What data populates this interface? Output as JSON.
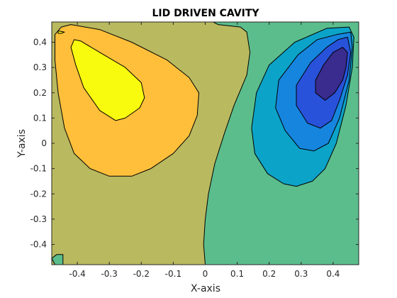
{
  "chart_data": {
    "type": "contour",
    "title": "LID DRIVEN CAVITY",
    "xlabel": "X-axis",
    "ylabel": "Y-axis",
    "xlim": [
      -0.48,
      0.48
    ],
    "ylim": [
      -0.48,
      0.48
    ],
    "xticks": [
      -0.4,
      -0.3,
      -0.2,
      -0.1,
      0,
      0.1,
      0.2,
      0.3,
      0.4
    ],
    "xtick_labels": [
      "-0.4",
      "-0.3",
      "-0.2",
      "-0.1",
      "0",
      "0.1",
      "0.2",
      "0.3",
      "0.4"
    ],
    "yticks": [
      -0.4,
      -0.3,
      -0.2,
      -0.1,
      0,
      0.1,
      0.2,
      0.3,
      0.4
    ],
    "ytick_labels": [
      "-0.4",
      "-0.3",
      "-0.2",
      "-0.1",
      "0",
      "0.1",
      "0.2",
      "0.3",
      "0.4"
    ],
    "grid": false,
    "box": true,
    "colormap": "parula",
    "level_colors": {
      "background_high": "#b9b95f",
      "orange": "#ffbf3a",
      "yellow": "#f9fb0e",
      "background_low": "#5bbd8c",
      "cyan": "#0ca3c8",
      "medium_blue": "#1685de",
      "blue": "#2852da",
      "dark_blue": "#3a2b8e"
    },
    "regions": [
      {
        "level": "background_low",
        "points": [
          [
            0.025,
            0.48
          ],
          [
            0.04,
            0.47
          ],
          [
            0.11,
            0.46
          ],
          [
            0.13,
            0.44
          ],
          [
            0.14,
            0.36
          ],
          [
            0.13,
            0.27
          ],
          [
            0.09,
            0.15
          ],
          [
            0.06,
            0.04
          ],
          [
            0.03,
            -0.08
          ],
          [
            0.01,
            -0.2
          ],
          [
            0.0,
            -0.3
          ],
          [
            -0.005,
            -0.4
          ],
          [
            0.0,
            -0.48
          ],
          [
            0.48,
            -0.48
          ],
          [
            0.48,
            0.48
          ]
        ]
      },
      {
        "level": "cyan",
        "points": [
          [
            0.38,
            0.455
          ],
          [
            0.45,
            0.46
          ],
          [
            0.465,
            0.42
          ],
          [
            0.46,
            0.3
          ],
          [
            0.44,
            0.15
          ],
          [
            0.41,
            0.0
          ],
          [
            0.375,
            -0.1
          ],
          [
            0.335,
            -0.15
          ],
          [
            0.285,
            -0.17
          ],
          [
            0.245,
            -0.16
          ],
          [
            0.195,
            -0.12
          ],
          [
            0.155,
            -0.04
          ],
          [
            0.145,
            0.06
          ],
          [
            0.16,
            0.2
          ],
          [
            0.2,
            0.31
          ],
          [
            0.28,
            0.4
          ]
        ]
      },
      {
        "level": "medium_blue",
        "points": [
          [
            0.41,
            0.43
          ],
          [
            0.455,
            0.44
          ],
          [
            0.46,
            0.38
          ],
          [
            0.45,
            0.25
          ],
          [
            0.42,
            0.1
          ],
          [
            0.385,
            0.0
          ],
          [
            0.34,
            -0.03
          ],
          [
            0.295,
            -0.02
          ],
          [
            0.25,
            0.05
          ],
          [
            0.22,
            0.14
          ],
          [
            0.23,
            0.25
          ],
          [
            0.29,
            0.35
          ],
          [
            0.35,
            0.41
          ]
        ]
      },
      {
        "level": "blue",
        "points": [
          [
            0.415,
            0.41
          ],
          [
            0.445,
            0.42
          ],
          [
            0.455,
            0.36
          ],
          [
            0.445,
            0.27
          ],
          [
            0.42,
            0.17
          ],
          [
            0.395,
            0.09
          ],
          [
            0.36,
            0.06
          ],
          [
            0.32,
            0.08
          ],
          [
            0.285,
            0.15
          ],
          [
            0.285,
            0.23
          ],
          [
            0.33,
            0.32
          ],
          [
            0.38,
            0.38
          ]
        ]
      },
      {
        "level": "dark_blue",
        "points": [
          [
            0.43,
            0.38
          ],
          [
            0.445,
            0.36
          ],
          [
            0.44,
            0.3
          ],
          [
            0.43,
            0.25
          ],
          [
            0.405,
            0.2
          ],
          [
            0.375,
            0.17
          ],
          [
            0.345,
            0.2
          ],
          [
            0.345,
            0.25
          ],
          [
            0.37,
            0.31
          ],
          [
            0.4,
            0.36
          ]
        ]
      },
      {
        "level": "orange",
        "points": [
          [
            -0.45,
            0.46
          ],
          [
            -0.42,
            0.47
          ],
          [
            -0.33,
            0.45
          ],
          [
            -0.23,
            0.4
          ],
          [
            -0.12,
            0.33
          ],
          [
            -0.05,
            0.26
          ],
          [
            -0.02,
            0.2
          ],
          [
            -0.025,
            0.11
          ],
          [
            -0.05,
            0.03
          ],
          [
            -0.1,
            -0.04
          ],
          [
            -0.17,
            -0.1
          ],
          [
            -0.23,
            -0.13
          ],
          [
            -0.3,
            -0.13
          ],
          [
            -0.36,
            -0.1
          ],
          [
            -0.41,
            -0.04
          ],
          [
            -0.44,
            0.06
          ],
          [
            -0.46,
            0.2
          ],
          [
            -0.47,
            0.33
          ],
          [
            -0.47,
            0.43
          ]
        ]
      },
      {
        "level": "yellow",
        "points": [
          [
            -0.41,
            0.41
          ],
          [
            -0.39,
            0.405
          ],
          [
            -0.33,
            0.36
          ],
          [
            -0.25,
            0.3
          ],
          [
            -0.2,
            0.24
          ],
          [
            -0.19,
            0.18
          ],
          [
            -0.205,
            0.14
          ],
          [
            -0.25,
            0.1
          ],
          [
            -0.28,
            0.09
          ],
          [
            -0.33,
            0.13
          ],
          [
            -0.38,
            0.22
          ],
          [
            -0.405,
            0.31
          ],
          [
            -0.42,
            0.38
          ]
        ]
      },
      {
        "level": "yellow",
        "points": [
          [
            -0.46,
            0.445
          ],
          [
            -0.44,
            0.44
          ],
          [
            -0.45,
            0.435
          ],
          [
            -0.46,
            0.435
          ]
        ]
      },
      {
        "level": "background_low",
        "points": [
          [
            -0.47,
            -0.48
          ],
          [
            -0.48,
            -0.455
          ],
          [
            -0.465,
            -0.44
          ],
          [
            -0.445,
            -0.44
          ],
          [
            -0.445,
            -0.48
          ]
        ]
      }
    ]
  }
}
